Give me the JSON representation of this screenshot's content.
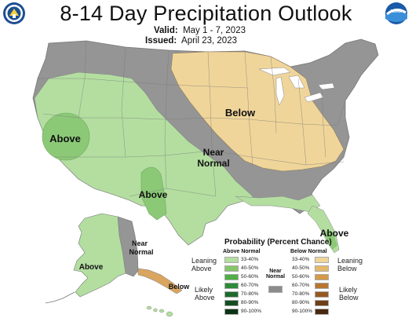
{
  "title": "8-14 Day Precipitation Outlook",
  "valid": {
    "label": "Valid:",
    "value": "May 1 - 7, 2023"
  },
  "issued": {
    "label": "Issued:",
    "value": "April 23, 2023"
  },
  "map_labels": {
    "above_west": "Above",
    "below_central": "Below",
    "near_normal_line1": "Near",
    "near_normal_line2": "Normal",
    "above_sw": "Above",
    "above_florida": "Above",
    "alaska_above": "Above",
    "alaska_near_line1": "Near",
    "alaska_near_line2": "Normal",
    "alaska_below": "Below"
  },
  "legend": {
    "title": "Probability (Percent Chance)",
    "above_head": "Above Normal",
    "below_head": "Below Normal",
    "near_head_line1": "Near",
    "near_head_line2": "Normal",
    "leaning_above_line1": "Leaning",
    "leaning_above_line2": "Above",
    "likely_above_line1": "Likely",
    "likely_above_line2": "Above",
    "leaning_below_line1": "Leaning",
    "leaning_below_line2": "Below",
    "likely_below_line1": "Likely",
    "likely_below_line2": "Below",
    "above_ranges": [
      "33-40%",
      "40-50%",
      "50-60%",
      "60-70%",
      "70-80%",
      "80-90%",
      "90-100%"
    ],
    "below_ranges": [
      "33-40%",
      "40-50%",
      "50-60%",
      "60-70%",
      "70-80%",
      "80-90%",
      "90-100%"
    ],
    "above_colors": [
      "#b3dea0",
      "#86c66b",
      "#4fae45",
      "#2e8b3a",
      "#1f6b2c",
      "#144e20",
      "#0b3314"
    ],
    "below_colors": [
      "#f0d59a",
      "#e4b96a",
      "#d49a4a",
      "#b77632",
      "#955a22",
      "#6e3f17",
      "#4a280e"
    ],
    "near_color": "#8c8c8c"
  },
  "colors": {
    "near_normal": "#959595",
    "above_light": "#b3dea0",
    "above_mid": "#8cc977",
    "below_light": "#f0d59a",
    "below_mid": "#d9a560"
  },
  "logos": {
    "left": "commerce-seal-icon",
    "right": "noaa-logo-icon"
  }
}
